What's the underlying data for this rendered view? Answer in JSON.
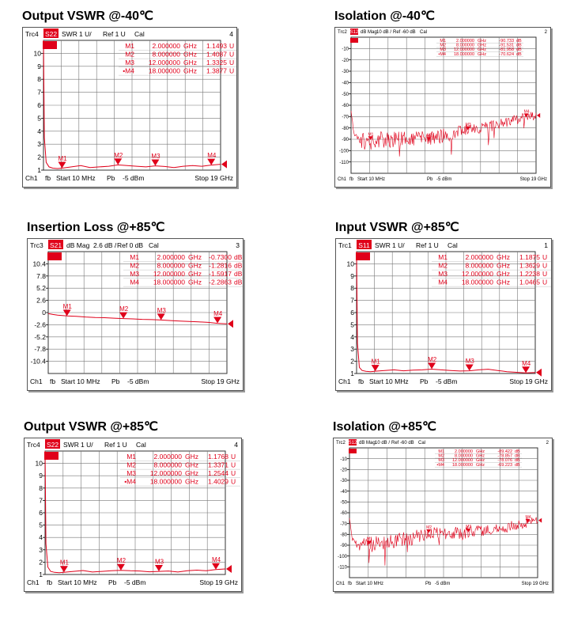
{
  "charts": [
    {
      "title": "Output VSWR @-40℃"
    },
    {
      "title": "Isolation @-40℃"
    },
    {
      "title": "Insertion Loss @+85℃"
    },
    {
      "title": "Input VSWR @+85℃"
    },
    {
      "title": "Output VSWR @+85℃"
    },
    {
      "title": "Isolation @+85℃"
    }
  ],
  "colors": {
    "trace": "#e0001a",
    "badge": "#e0001a",
    "grid": "#333333",
    "marker": "#e0001a"
  },
  "chart_data": [
    {
      "type": "line",
      "header": {
        "trc": "Trc4",
        "param": "S22",
        "fmt": "SWR",
        "scale": "1 U/",
        "ref": "Ref 1 U",
        "cal": "Cal",
        "num": "4"
      },
      "footer": {
        "ch": "Ch1",
        "fb": "fb",
        "start": "Start 10 MHz",
        "pb": "Pb",
        "power": "-5 dBm",
        "stop": "Stop 19 GHz"
      },
      "y_ticks": [
        "10",
        "9",
        "8",
        "7",
        "6",
        "5",
        "4",
        "3",
        "2",
        "1"
      ],
      "ylim": [
        1,
        11
      ],
      "xlim": [
        0.01,
        19
      ],
      "markers": [
        {
          "name": "M1",
          "freq": "2.000000",
          "unit": "GHz",
          "value": "1.1493",
          "vunit": "U",
          "x": 2.0,
          "y": 1.1493
        },
        {
          "name": "M2",
          "freq": "8.000000",
          "unit": "GHz",
          "value": "1.4087",
          "vunit": "U",
          "x": 8.0,
          "y": 1.4087
        },
        {
          "name": "M3",
          "freq": "12.000000",
          "unit": "GHz",
          "value": "1.3325",
          "vunit": "U",
          "x": 12.0,
          "y": 1.3325
        },
        {
          "name": "•M4",
          "freq": "18.000000",
          "unit": "GHz",
          "value": "1.3877",
          "vunit": "U",
          "x": 18.0,
          "y": 1.3877
        }
      ],
      "trace": {
        "x": [
          0.01,
          0.1,
          0.3,
          0.6,
          1,
          1.5,
          2,
          3,
          4,
          5,
          6,
          7,
          8,
          9,
          10,
          11,
          12,
          13,
          14,
          15,
          16,
          17,
          18,
          19
        ],
        "y": [
          11,
          3.5,
          1.6,
          1.25,
          1.15,
          1.12,
          1.15,
          1.25,
          1.35,
          1.2,
          1.25,
          1.3,
          1.4,
          1.35,
          1.3,
          1.25,
          1.33,
          1.28,
          1.2,
          1.3,
          1.35,
          1.3,
          1.39,
          1.45
        ]
      }
    },
    {
      "type": "line",
      "header": {
        "trc": "Trc2",
        "param": "S12",
        "fmt": "dB Mag",
        "scale": "10 dB /",
        "ref": "Ref -60 dB",
        "cal": "Cal",
        "num": "2"
      },
      "footer": {
        "ch": "Ch1",
        "fb": "fb",
        "start": "Start 10 MHz",
        "pb": "Pb",
        "power": "-5 dBm",
        "stop": "Stop 19 GHz"
      },
      "y_ticks": [
        "-10",
        "-20",
        "-30",
        "-40",
        "-50",
        "-60",
        "-70",
        "-80",
        "-90",
        "-100",
        "-110"
      ],
      "ylim": [
        -120,
        0
      ],
      "xlim": [
        0.01,
        19
      ],
      "markers": [
        {
          "name": "M1",
          "freq": "2.000000",
          "unit": "GHz",
          "value": "-90.733",
          "vunit": "dB",
          "x": 2.0,
          "y": -90.733
        },
        {
          "name": "M2",
          "freq": "8.000000",
          "unit": "GHz",
          "value": "-91.531",
          "vunit": "dB",
          "x": 8.0,
          "y": -91.531
        },
        {
          "name": "M3",
          "freq": "12.000000",
          "unit": "GHz",
          "value": "-81.958",
          "vunit": "dB",
          "x": 12.0,
          "y": -81.958
        },
        {
          "name": "•M4",
          "freq": "18.000000",
          "unit": "GHz",
          "value": "-70.624",
          "vunit": "dB",
          "x": 18.0,
          "y": -70.624
        }
      ],
      "trace": {
        "kind": "noise",
        "x": [
          0.01,
          0.3,
          1,
          2,
          4,
          6,
          8,
          10,
          12,
          14,
          16,
          18,
          19
        ],
        "y": [
          -63,
          -85,
          -92,
          -91,
          -90,
          -90,
          -89,
          -86,
          -82,
          -79,
          -75,
          -71,
          -69
        ],
        "jitter": 8
      }
    },
    {
      "type": "line",
      "header": {
        "trc": "Trc3",
        "param": "S21",
        "fmt": "dB Mag",
        "scale": "2.6 dB /",
        "ref": "Ref 0 dB",
        "cal": "Cal",
        "num": "3"
      },
      "footer": {
        "ch": "Ch1",
        "fb": "fb",
        "start": "Start 10 MHz",
        "pb": "Pb",
        "power": "-5 dBm",
        "stop": "Stop 19 GHz"
      },
      "y_ticks": [
        "10.4",
        "7.8",
        "5.2",
        "2.6",
        "0",
        "-2.6",
        "-5.2",
        "-7.8",
        "-10.4"
      ],
      "ylim": [
        -13,
        13
      ],
      "xlim": [
        0.01,
        19
      ],
      "markers": [
        {
          "name": "M1",
          "freq": "2.000000",
          "unit": "GHz",
          "value": "-0.7300",
          "vunit": "dB",
          "x": 2.0,
          "y": -0.73
        },
        {
          "name": "M2",
          "freq": "8.000000",
          "unit": "GHz",
          "value": "-1.2816",
          "vunit": "dB",
          "x": 8.0,
          "y": -1.2816
        },
        {
          "name": "M3",
          "freq": "12.000000",
          "unit": "GHz",
          "value": "-1.5917",
          "vunit": "dB",
          "x": 12.0,
          "y": -1.5917
        },
        {
          "name": "M4",
          "freq": "18.000000",
          "unit": "GHz",
          "value": "-2.2863",
          "vunit": "dB",
          "x": 18.0,
          "y": -2.2863
        }
      ],
      "trace": {
        "x": [
          0.01,
          0.5,
          1,
          2,
          3,
          4,
          5,
          6,
          7,
          8,
          9,
          10,
          11,
          12,
          13,
          14,
          15,
          16,
          17,
          18,
          19
        ],
        "y": [
          -0.2,
          -0.4,
          -0.55,
          -0.73,
          -0.8,
          -0.95,
          -1.05,
          -1.1,
          -1.2,
          -1.28,
          -1.35,
          -1.45,
          -1.5,
          -1.59,
          -1.7,
          -1.8,
          -1.9,
          -2.0,
          -2.1,
          -2.29,
          -2.4
        ]
      }
    },
    {
      "type": "line",
      "header": {
        "trc": "Trc1",
        "param": "S11",
        "fmt": "SWR",
        "scale": "1 U/",
        "ref": "Ref 1 U",
        "cal": "Cal",
        "num": "1"
      },
      "footer": {
        "ch": "Ch1",
        "fb": "fb",
        "start": "Start 10 MHz",
        "pb": "Pb",
        "power": "-5 dBm",
        "stop": "Stop 19 GHz"
      },
      "y_ticks": [
        "10",
        "9",
        "8",
        "7",
        "6",
        "5",
        "4",
        "3",
        "2",
        "1"
      ],
      "ylim": [
        1,
        11
      ],
      "xlim": [
        0.01,
        19
      ],
      "markers": [
        {
          "name": "M1",
          "freq": "2.000000",
          "unit": "GHz",
          "value": "1.1875",
          "vunit": "U",
          "x": 2.0,
          "y": 1.1875
        },
        {
          "name": "M2",
          "freq": "8.000000",
          "unit": "GHz",
          "value": "1.3629",
          "vunit": "U",
          "x": 8.0,
          "y": 1.3629
        },
        {
          "name": "M3",
          "freq": "12.000000",
          "unit": "GHz",
          "value": "1.2238",
          "vunit": "U",
          "x": 12.0,
          "y": 1.2238
        },
        {
          "name": "M4",
          "freq": "18.000000",
          "unit": "GHz",
          "value": "1.0465",
          "vunit": "U",
          "x": 18.0,
          "y": 1.0465
        }
      ],
      "trace": {
        "x": [
          0.01,
          0.1,
          0.3,
          0.6,
          1,
          1.5,
          2,
          3,
          4,
          5,
          6,
          7,
          8,
          9,
          10,
          11,
          12,
          13,
          14,
          15,
          16,
          17,
          18,
          19
        ],
        "y": [
          11,
          3.5,
          1.5,
          1.25,
          1.18,
          1.15,
          1.19,
          1.25,
          1.3,
          1.22,
          1.28,
          1.3,
          1.36,
          1.3,
          1.25,
          1.2,
          1.22,
          1.3,
          1.35,
          1.25,
          1.15,
          1.1,
          1.05,
          1.08
        ]
      }
    },
    {
      "type": "line",
      "header": {
        "trc": "Trc4",
        "param": "S22",
        "fmt": "SWR",
        "scale": "1 U/",
        "ref": "Ref 1 U",
        "cal": "Cal",
        "num": "4"
      },
      "footer": {
        "ch": "Ch1",
        "fb": "fb",
        "start": "Start 10 MHz",
        "pb": "Pb",
        "power": "-5 dBm",
        "stop": "Stop 19 GHz"
      },
      "y_ticks": [
        "10",
        "9",
        "8",
        "7",
        "6",
        "5",
        "4",
        "3",
        "2",
        "1"
      ],
      "ylim": [
        1,
        11
      ],
      "xlim": [
        0.01,
        19
      ],
      "markers": [
        {
          "name": "M1",
          "freq": "2.000000",
          "unit": "GHz",
          "value": "1.1768",
          "vunit": "U",
          "x": 2.0,
          "y": 1.1768
        },
        {
          "name": "M2",
          "freq": "8.000000",
          "unit": "GHz",
          "value": "1.3371",
          "vunit": "U",
          "x": 8.0,
          "y": 1.3371
        },
        {
          "name": "M3",
          "freq": "12.000000",
          "unit": "GHz",
          "value": "1.2544",
          "vunit": "U",
          "x": 12.0,
          "y": 1.2544
        },
        {
          "name": "•M4",
          "freq": "18.000000",
          "unit": "GHz",
          "value": "1.4029",
          "vunit": "U",
          "x": 18.0,
          "y": 1.4029
        }
      ],
      "trace": {
        "x": [
          0.01,
          0.1,
          0.3,
          0.6,
          1,
          1.5,
          2,
          3,
          4,
          5,
          6,
          7,
          8,
          9,
          10,
          11,
          12,
          13,
          14,
          15,
          16,
          17,
          18,
          19
        ],
        "y": [
          11,
          3.5,
          1.6,
          1.25,
          1.17,
          1.14,
          1.18,
          1.25,
          1.32,
          1.2,
          1.25,
          1.3,
          1.34,
          1.3,
          1.28,
          1.22,
          1.25,
          1.28,
          1.2,
          1.3,
          1.35,
          1.3,
          1.4,
          1.45
        ]
      }
    },
    {
      "type": "line",
      "header": {
        "trc": "Trc2",
        "param": "S12",
        "fmt": "dB Mag",
        "scale": "10 dB /",
        "ref": "Ref -60 dB",
        "cal": "Cal",
        "num": "2"
      },
      "footer": {
        "ch": "Ch1",
        "fb": "fb",
        "start": "Start 10 MHz",
        "pb": "Pb",
        "power": "-5 dBm",
        "stop": "Stop 19 GHz"
      },
      "y_ticks": [
        "-10",
        "-20",
        "-30",
        "-40",
        "-50",
        "-60",
        "-70",
        "-80",
        "-90",
        "-100",
        "-110"
      ],
      "ylim": [
        -120,
        0
      ],
      "xlim": [
        0.01,
        19
      ],
      "markers": [
        {
          "name": "M1",
          "freq": "2.000000",
          "unit": "GHz",
          "value": "-89.422",
          "vunit": "dB",
          "x": 2.0,
          "y": -89.422
        },
        {
          "name": "M2",
          "freq": "8.000000",
          "unit": "GHz",
          "value": "-78.857",
          "vunit": "dB",
          "x": 8.0,
          "y": -78.857
        },
        {
          "name": "M3",
          "freq": "12.000000",
          "unit": "GHz",
          "value": "-78.076",
          "vunit": "dB",
          "x": 12.0,
          "y": -78.076
        },
        {
          "name": "•M4",
          "freq": "18.000000",
          "unit": "GHz",
          "value": "-69.223",
          "vunit": "dB",
          "x": 18.0,
          "y": -69.223
        }
      ],
      "trace": {
        "kind": "noise",
        "x": [
          0.01,
          0.3,
          1,
          2,
          4,
          6,
          8,
          10,
          12,
          14,
          16,
          18,
          19
        ],
        "y": [
          -63,
          -85,
          -90,
          -89,
          -87,
          -84,
          -80,
          -79,
          -78,
          -76,
          -73,
          -69,
          -67
        ],
        "jitter": 8
      }
    }
  ]
}
